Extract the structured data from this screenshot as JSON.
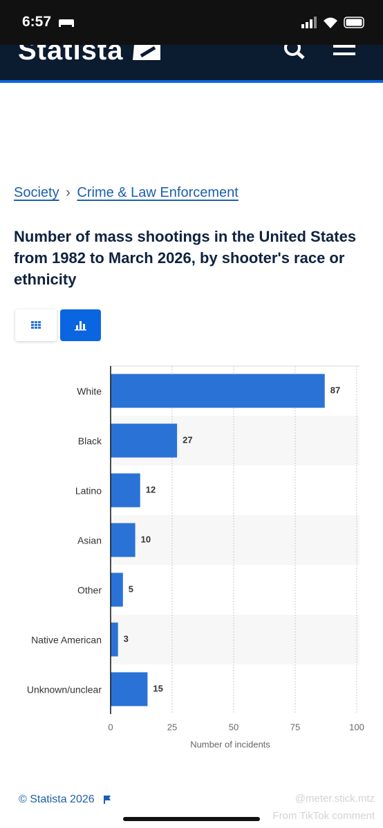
{
  "status_bar": {
    "time": "6:57"
  },
  "header": {
    "logo": "Statista"
  },
  "breadcrumbs": {
    "items": [
      "Society",
      "Crime & Law Enforcement"
    ],
    "separator": "›"
  },
  "chart_data": {
    "type": "bar",
    "orientation": "horizontal",
    "title": "Number of mass shootings in the United States from 1982 to March 2026, by shooter's race or ethnicity",
    "categories": [
      "White",
      "Black",
      "Latino",
      "Asian",
      "Other",
      "Native American",
      "Unknown/unclear"
    ],
    "values": [
      87,
      27,
      12,
      10,
      5,
      3,
      15
    ],
    "color": "#2a72d6",
    "xlim": [
      0,
      100
    ],
    "xticks": [
      0,
      25,
      50,
      75,
      100
    ],
    "x_label": "Number of incidents",
    "grid": true
  },
  "footer": {
    "copyright": "© Statista 2026"
  },
  "watermark": {
    "handle": "@meter.stick.mtz",
    "source": "From TikTok comment"
  }
}
